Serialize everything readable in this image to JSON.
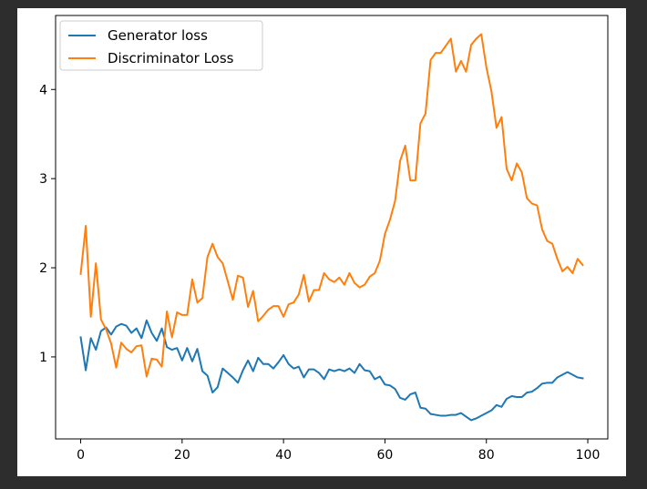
{
  "chart_data": {
    "type": "line",
    "title": "",
    "xlabel": "",
    "ylabel": "",
    "xlim": [
      -4.95,
      103.95
    ],
    "ylim": [
      0.08,
      4.83
    ],
    "xticks": [
      0,
      20,
      40,
      60,
      80,
      100
    ],
    "yticks": [
      1,
      2,
      3,
      4
    ],
    "x_tick_labels": [
      "0",
      "20",
      "40",
      "60",
      "80",
      "100"
    ],
    "y_tick_labels": [
      "1",
      "2",
      "3",
      "4"
    ],
    "legend_position": "upper-left",
    "grid": false,
    "series": [
      {
        "name": "Generator loss",
        "color": "#1f77b4",
        "values": [
          1.22,
          0.85,
          1.21,
          1.08,
          1.29,
          1.33,
          1.25,
          1.34,
          1.37,
          1.35,
          1.27,
          1.32,
          1.21,
          1.41,
          1.27,
          1.18,
          1.32,
          1.11,
          1.08,
          1.1,
          0.96,
          1.1,
          0.95,
          1.09,
          0.84,
          0.79,
          0.6,
          0.66,
          0.87,
          0.82,
          0.77,
          0.71,
          0.85,
          0.96,
          0.84,
          0.99,
          0.92,
          0.92,
          0.87,
          0.94,
          1.02,
          0.92,
          0.87,
          0.89,
          0.77,
          0.86,
          0.86,
          0.82,
          0.75,
          0.86,
          0.84,
          0.86,
          0.84,
          0.87,
          0.82,
          0.92,
          0.85,
          0.84,
          0.75,
          0.78,
          0.69,
          0.68,
          0.64,
          0.54,
          0.52,
          0.58,
          0.6,
          0.43,
          0.42,
          0.36,
          0.35,
          0.34,
          0.34,
          0.35,
          0.35,
          0.37,
          0.33,
          0.29,
          0.31,
          0.34,
          0.37,
          0.4,
          0.46,
          0.44,
          0.53,
          0.56,
          0.55,
          0.55,
          0.6,
          0.61,
          0.65,
          0.7,
          0.71,
          0.71,
          0.77,
          0.8,
          0.83,
          0.8,
          0.77,
          0.76
        ]
      },
      {
        "name": "Discriminator Loss",
        "color": "#ff7f0e",
        "values": [
          1.93,
          2.47,
          1.45,
          2.05,
          1.42,
          1.31,
          1.15,
          0.88,
          1.16,
          1.09,
          1.05,
          1.12,
          1.13,
          0.78,
          0.98,
          0.97,
          0.89,
          1.51,
          1.22,
          1.5,
          1.47,
          1.47,
          1.87,
          1.61,
          1.66,
          2.12,
          2.27,
          2.12,
          2.05,
          1.85,
          1.64,
          1.91,
          1.89,
          1.56,
          1.74,
          1.4,
          1.46,
          1.53,
          1.57,
          1.57,
          1.45,
          1.59,
          1.61,
          1.7,
          1.92,
          1.62,
          1.75,
          1.75,
          1.94,
          1.87,
          1.84,
          1.89,
          1.81,
          1.94,
          1.83,
          1.78,
          1.81,
          1.9,
          1.94,
          2.08,
          2.38,
          2.54,
          2.75,
          3.2,
          3.37,
          2.98,
          2.98,
          3.62,
          3.73,
          4.33,
          4.41,
          4.41,
          4.49,
          4.57,
          4.2,
          4.32,
          4.2,
          4.5,
          4.57,
          4.62,
          4.25,
          3.98,
          3.57,
          3.69,
          3.11,
          2.98,
          3.17,
          3.07,
          2.78,
          2.72,
          2.7,
          2.43,
          2.3,
          2.27,
          2.1,
          1.96,
          2.01,
          1.94,
          2.1,
          2.03
        ]
      }
    ]
  }
}
